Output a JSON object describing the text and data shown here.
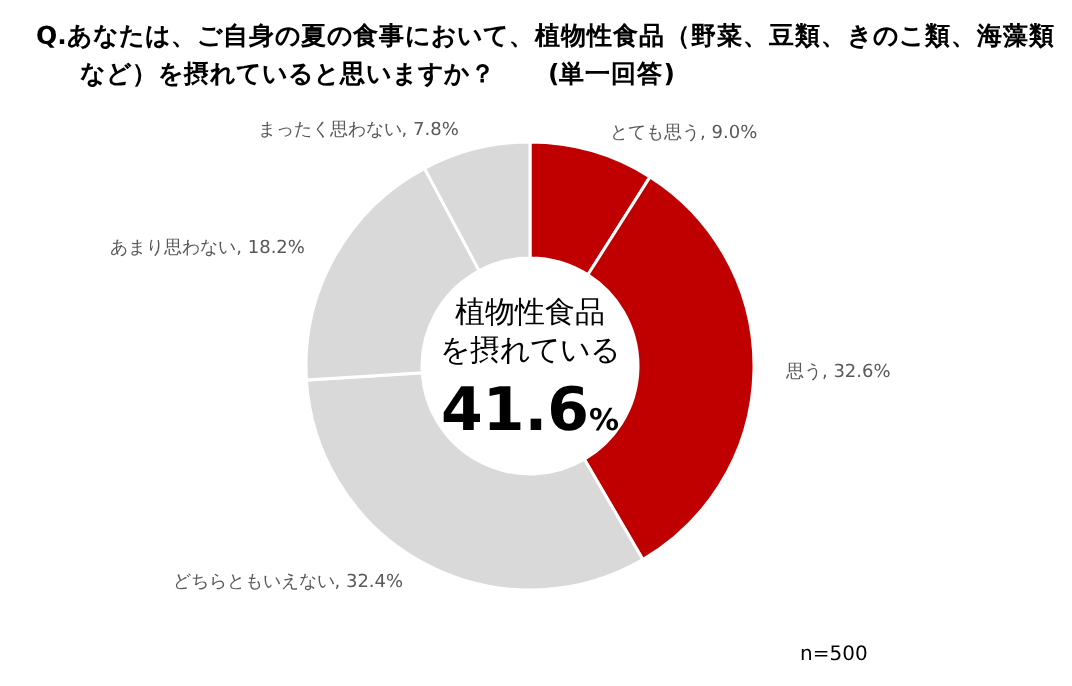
{
  "chart_data": {
    "type": "donut",
    "title": "Q.あなたは、ご自身の夏の食事において、植物性食品（野菜、豆類、きのこ類、海藻類など）を摂れていると思いますか？　　(単一回答)",
    "categories": [
      "とても思う",
      "思う",
      "どちらともいえない",
      "あまり思わない",
      "まったく思わない"
    ],
    "values": [
      9.0,
      32.6,
      32.4,
      18.2,
      7.8
    ],
    "colors": [
      "#c00000",
      "#c00000",
      "#d9d9d9",
      "#d9d9d9",
      "#d9d9d9"
    ],
    "value_labels": [
      "9.0%",
      "32.6%",
      "32.4%",
      "18.2%",
      "7.8%"
    ],
    "annotations": [
      "植物性食品",
      "を摂れている",
      "41.6%",
      "n=500"
    ],
    "legend": false
  }
}
